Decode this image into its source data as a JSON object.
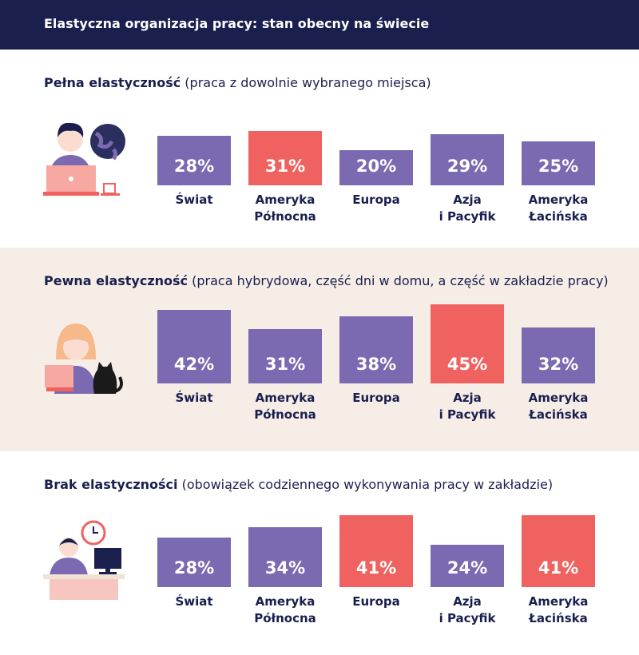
{
  "header": {
    "title": "Elastyczna organizacja pracy: stan obecny na świecie"
  },
  "chart_data": [
    {
      "type": "bar",
      "title": "Pełna elastyczność",
      "subtitle": "(praca z dowolnie wybranego miejsca)",
      "categories": [
        "Świat",
        "Ameryka\nPółnocna",
        "Europa",
        "Azja\ni Pacyfik",
        "Ameryka\nŁacińska"
      ],
      "values": [
        28,
        31,
        20,
        29,
        25
      ],
      "value_labels": [
        "28%",
        "31%",
        "20%",
        "29%",
        "25%"
      ],
      "colors": [
        "#7b69b1",
        "#f0625f",
        "#7b69b1",
        "#7b69b1",
        "#7b69b1"
      ]
    },
    {
      "type": "bar",
      "title": "Pewna elastyczność",
      "subtitle": "(praca hybrydowa, część dni w domu, a część w zakładzie pracy)",
      "categories": [
        "Świat",
        "Ameryka\nPółnocna",
        "Europa",
        "Azja\ni Pacyfik",
        "Ameryka\nŁacińska"
      ],
      "values": [
        42,
        31,
        38,
        45,
        32
      ],
      "value_labels": [
        "42%",
        "31%",
        "38%",
        "45%",
        "32%"
      ],
      "colors": [
        "#7b69b1",
        "#7b69b1",
        "#7b69b1",
        "#f0625f",
        "#7b69b1"
      ]
    },
    {
      "type": "bar",
      "title": "Brak elastyczności",
      "subtitle": "(obowiązek codziennego wykonywania pracy w zakładzie)",
      "categories": [
        "Świat",
        "Ameryka\nPółnocna",
        "Europa",
        "Azja\ni Pacyfik",
        "Ameryka\nŁacińska"
      ],
      "values": [
        28,
        34,
        41,
        24,
        41
      ],
      "value_labels": [
        "28%",
        "34%",
        "41%",
        "24%",
        "41%"
      ],
      "colors": [
        "#7b69b1",
        "#7b69b1",
        "#f0625f",
        "#7b69b1",
        "#f0625f"
      ]
    }
  ]
}
